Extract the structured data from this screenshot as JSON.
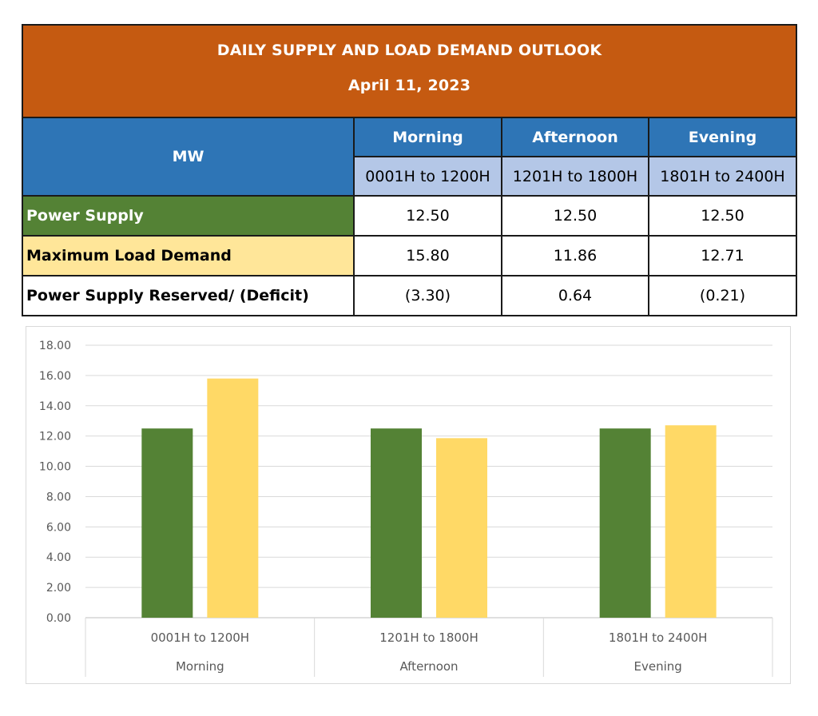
{
  "table": {
    "title": "DAILY SUPPLY AND LOAD DEMAND OUTLOOK",
    "date": "April 11, 2023",
    "unit_label": "MW",
    "periods": [
      {
        "name": "Morning",
        "range": "0001H to 1200H"
      },
      {
        "name": "Afternoon",
        "range": "1201H to 1800H"
      },
      {
        "name": "Evening",
        "range": "1801H to 2400H"
      }
    ],
    "rows": [
      {
        "label": "Power Supply",
        "values": [
          "12.50",
          "12.50",
          "12.50"
        ]
      },
      {
        "label": "Maximum Load Demand",
        "values": [
          "15.80",
          "11.86",
          "12.71"
        ]
      },
      {
        "label": "Power Supply Reserved/ (Deficit)",
        "values": [
          "(3.30)",
          "0.64",
          "(0.21)"
        ]
      }
    ]
  },
  "colors": {
    "title_bg": "#c55a11",
    "header_bg": "#2e75b6",
    "range_bg": "#b4c7e7",
    "supply": "#548235",
    "demand": "#ffd966",
    "demand_label_bg": "#ffe699"
  },
  "chart_data": {
    "type": "bar",
    "categories": [
      "0001H to 1200H",
      "1201H to 1800H",
      "1801H to 2400H"
    ],
    "category_groups": [
      "Morning",
      "Afternoon",
      "Evening"
    ],
    "series": [
      {
        "values": [
          12.5,
          12.5,
          12.5
        ],
        "color": "#548235"
      },
      {
        "values": [
          15.8,
          11.86,
          12.71
        ],
        "color": "#ffd966"
      }
    ],
    "ylim": [
      0,
      18
    ],
    "yticks": [
      "0.00",
      "2.00",
      "4.00",
      "6.00",
      "8.00",
      "10.00",
      "12.00",
      "14.00",
      "16.00",
      "18.00"
    ],
    "grid": true,
    "title": "",
    "xlabel": "",
    "ylabel": ""
  }
}
